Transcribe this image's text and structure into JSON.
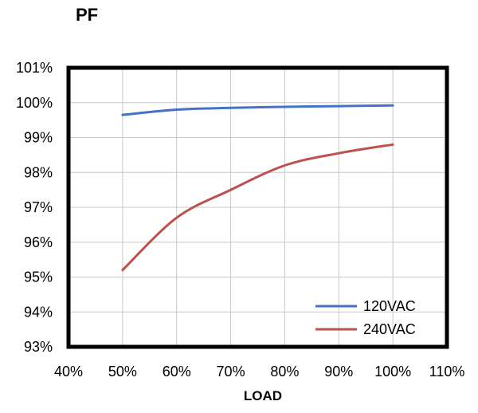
{
  "chart_data": {
    "type": "line",
    "title": "PF",
    "xlabel": "LOAD",
    "ylabel": "",
    "xlim": [
      40,
      110
    ],
    "ylim": [
      93,
      101
    ],
    "x_ticks": [
      40,
      50,
      60,
      70,
      80,
      90,
      100,
      110
    ],
    "x_tick_labels": [
      "40%",
      "50%",
      "60%",
      "70%",
      "80%",
      "90%",
      "100%",
      "110%"
    ],
    "y_ticks": [
      93,
      94,
      95,
      96,
      97,
      98,
      99,
      100,
      101
    ],
    "y_tick_labels": [
      "93%",
      "94%",
      "95%",
      "96%",
      "97%",
      "98%",
      "99%",
      "100%",
      "101%"
    ],
    "grid": true,
    "legend_position": "bottom-right",
    "series": [
      {
        "name": "120VAC",
        "color": "#4472c4",
        "x": [
          50,
          60,
          70,
          80,
          90,
          100
        ],
        "values": [
          99.65,
          99.8,
          99.85,
          99.88,
          99.9,
          99.92
        ]
      },
      {
        "name": "240VAC",
        "color": "#c0504d",
        "x": [
          50,
          60,
          70,
          80,
          90,
          100
        ],
        "values": [
          95.2,
          96.7,
          97.5,
          98.2,
          98.55,
          98.8
        ]
      }
    ]
  }
}
